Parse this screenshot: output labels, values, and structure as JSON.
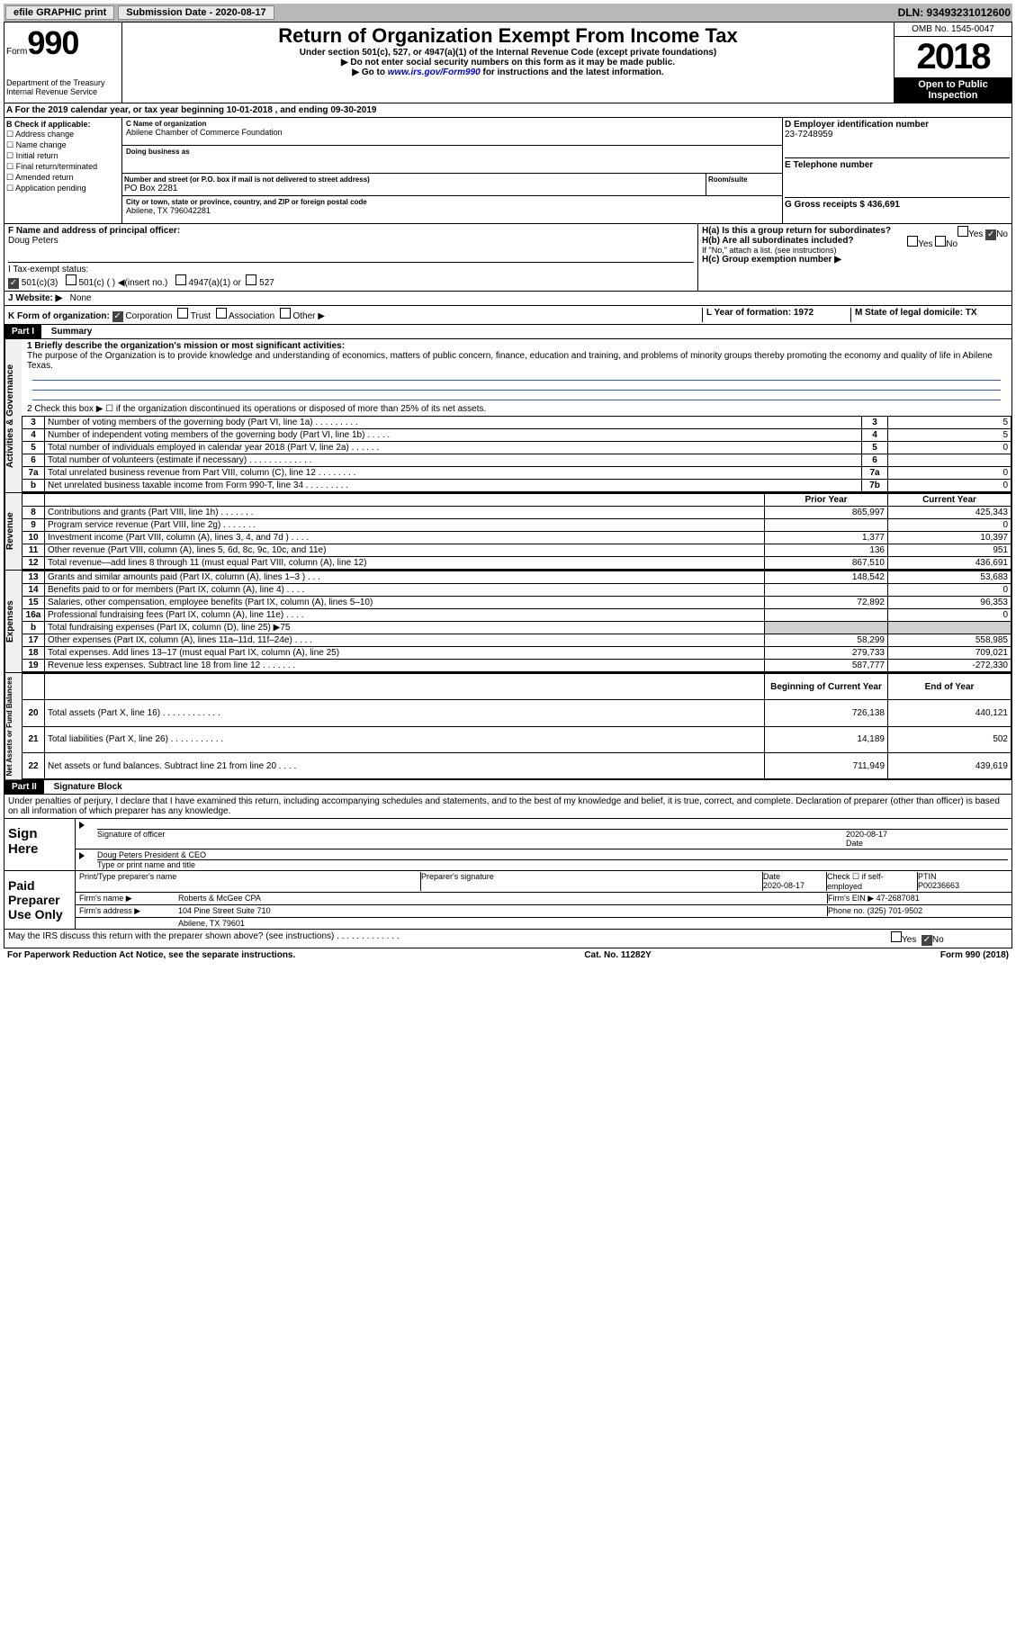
{
  "topbar": {
    "efile": "efile GRAPHIC print",
    "subdate_label": "Submission Date - 2020-08-17",
    "dln": "DLN: 93493231012600"
  },
  "header": {
    "form_word": "Form",
    "form_num": "990",
    "dept1": "Department of the Treasury",
    "dept2": "Internal Revenue Service",
    "title": "Return of Organization Exempt From Income Tax",
    "sub1": "Under section 501(c), 527, or 4947(a)(1) of the Internal Revenue Code (except private foundations)",
    "sub2": "▶ Do not enter social security numbers on this form as it may be made public.",
    "sub3_pre": "▶ Go to ",
    "sub3_link": "www.irs.gov/Form990",
    "sub3_post": " for instructions and the latest information.",
    "omb": "OMB No. 1545-0047",
    "year": "2018",
    "inspect1": "Open to Public",
    "inspect2": "Inspection"
  },
  "row_a": "A For the 2019 calendar year, or tax year beginning 10-01-2018    , and ending 09-30-2019",
  "sec_b": {
    "label": "B Check if applicable:",
    "items": [
      "Address change",
      "Name change",
      "Initial return",
      "Final return/terminated",
      "Amended return",
      "Application pending"
    ]
  },
  "sec_c": {
    "name_label": "C Name of organization",
    "name": "Abilene Chamber of Commerce Foundation",
    "dba_label": "Doing business as",
    "addr_label": "Number and street (or P.O. box if mail is not delivered to street address)",
    "room_label": "Room/suite",
    "addr": "PO Box 2281",
    "city_label": "City or town, state or province, country, and ZIP or foreign postal code",
    "city": "Abilene, TX  796042281"
  },
  "sec_de": {
    "d_label": "D Employer identification number",
    "d_val": "23-7248959",
    "e_label": "E Telephone number",
    "g_label": "G Gross receipts $ 436,691"
  },
  "sec_f": {
    "label": "F  Name and address of principal officer:",
    "name": "Doug Peters"
  },
  "sec_h": {
    "ha": "H(a)  Is this a group return for subordinates?",
    "hb": "H(b)  Are all subordinates included?",
    "hb_note": "If \"No,\" attach a list. (see instructions)",
    "hc": "H(c)  Group exemption number ▶",
    "yes": "Yes",
    "no": "No"
  },
  "row_i": {
    "label": "I   Tax-exempt status:",
    "o1": "501(c)(3)",
    "o2": "501(c) (  ) ◀(insert no.)",
    "o3": "4947(a)(1) or",
    "o4": "527"
  },
  "row_j": {
    "label": "J   Website: ▶",
    "val": "None"
  },
  "row_k": {
    "label": "K Form of organization:",
    "o1": "Corporation",
    "o2": "Trust",
    "o3": "Association",
    "o4": "Other ▶",
    "l": "L Year of formation: 1972",
    "m": "M State of legal domicile: TX"
  },
  "part1": {
    "hdr": "Part I",
    "title": "Summary"
  },
  "summary": {
    "q1_label": "1  Briefly describe the organization's mission or most significant activities:",
    "q1_text": "The purpose of the Organization is to provide knowledge and understanding of economics, matters of public concern, finance, education and training, and problems of minority groups thereby promoting the economy and quality of life in Abilene Texas.",
    "q2": "2   Check this box ▶ ☐  if the organization discontinued its operations or disposed of more than 25% of its net assets.",
    "sidetab_ag": "Activities & Governance",
    "sidetab_rev": "Revenue",
    "sidetab_exp": "Expenses",
    "sidetab_na": "Net Assets or Fund Balances",
    "rows_ag": [
      {
        "n": "3",
        "d": "Number of voting members of the governing body (Part VI, line 1a)   .   .   .   .   .   .   .   .   .",
        "b": "3",
        "v": "5"
      },
      {
        "n": "4",
        "d": "Number of independent voting members of the governing body (Part VI, line 1b)   .   .   .   .   .",
        "b": "4",
        "v": "5"
      },
      {
        "n": "5",
        "d": "Total number of individuals employed in calendar year 2018 (Part V, line 2a)   .   .   .   .   .   .",
        "b": "5",
        "v": "0"
      },
      {
        "n": "6",
        "d": "Total number of volunteers (estimate if necessary)   .   .   .   .   .   .   .   .   .   .   .   .   .",
        "b": "6",
        "v": ""
      },
      {
        "n": "7a",
        "d": "Total unrelated business revenue from Part VIII, column (C), line 12   .   .   .   .   .   .   .   .",
        "b": "7a",
        "v": "0"
      },
      {
        "n": "b",
        "d": "Net unrelated business taxable income from Form 990-T, line 34   .   .   .   .   .   .   .   .   .",
        "b": "7b",
        "v": "0"
      }
    ],
    "col_hdr": {
      "py": "Prior Year",
      "cy": "Current Year",
      "bcy": "Beginning of Current Year",
      "eoy": "End of Year"
    },
    "rows_rev": [
      {
        "n": "8",
        "d": "Contributions and grants (Part VIII, line 1h)   .   .   .   .   .   .   .",
        "py": "865,997",
        "cy": "425,343"
      },
      {
        "n": "9",
        "d": "Program service revenue (Part VIII, line 2g)   .   .   .   .   .   .   .",
        "py": "",
        "cy": "0"
      },
      {
        "n": "10",
        "d": "Investment income (Part VIII, column (A), lines 3, 4, and 7d )   .   .   .   .",
        "py": "1,377",
        "cy": "10,397"
      },
      {
        "n": "11",
        "d": "Other revenue (Part VIII, column (A), lines 5, 6d, 8c, 9c, 10c, and 11e)",
        "py": "136",
        "cy": "951"
      },
      {
        "n": "12",
        "d": "Total revenue—add lines 8 through 11 (must equal Part VIII, column (A), line 12)",
        "py": "867,510",
        "cy": "436,691"
      }
    ],
    "rows_exp": [
      {
        "n": "13",
        "d": "Grants and similar amounts paid (Part IX, column (A), lines 1–3 )   .   .   .",
        "py": "148,542",
        "cy": "53,683"
      },
      {
        "n": "14",
        "d": "Benefits paid to or for members (Part IX, column (A), line 4)   .   .   .   .",
        "py": "",
        "cy": "0"
      },
      {
        "n": "15",
        "d": "Salaries, other compensation, employee benefits (Part IX, column (A), lines 5–10)",
        "py": "72,892",
        "cy": "96,353"
      },
      {
        "n": "16a",
        "d": "Professional fundraising fees (Part IX, column (A), line 11e)   .   .   .   .",
        "py": "",
        "cy": "0"
      },
      {
        "n": "b",
        "d": "Total fundraising expenses (Part IX, column (D), line 25) ▶75",
        "py": "shade",
        "cy": "shade"
      },
      {
        "n": "17",
        "d": "Other expenses (Part IX, column (A), lines 11a–11d, 11f–24e)   .   .   .   .",
        "py": "58,299",
        "cy": "558,985"
      },
      {
        "n": "18",
        "d": "Total expenses. Add lines 13–17 (must equal Part IX, column (A), line 25)",
        "py": "279,733",
        "cy": "709,021"
      },
      {
        "n": "19",
        "d": "Revenue less expenses. Subtract line 18 from line 12   .   .   .   .   .   .   .",
        "py": "587,777",
        "cy": "-272,330"
      }
    ],
    "rows_na": [
      {
        "n": "20",
        "d": "Total assets (Part X, line 16)   .   .   .   .   .   .   .   .   .   .   .   .",
        "py": "726,138",
        "cy": "440,121"
      },
      {
        "n": "21",
        "d": "Total liabilities (Part X, line 26)   .   .   .   .   .   .   .   .   .   .   .",
        "py": "14,189",
        "cy": "502"
      },
      {
        "n": "22",
        "d": "Net assets or fund balances. Subtract line 21 from line 20   .   .   .   .",
        "py": "711,949",
        "cy": "439,619"
      }
    ]
  },
  "part2": {
    "hdr": "Part II",
    "title": "Signature Block"
  },
  "sig": {
    "decl": "Under penalties of perjury, I declare that I have examined this return, including accompanying schedules and statements, and to the best of my knowledge and belief, it is true, correct, and complete. Declaration of preparer (other than officer) is based on all information of which preparer has any knowledge.",
    "sign_here": "Sign Here",
    "sig_officer": "Signature of officer",
    "date_label": "Date",
    "date_val": "2020-08-17",
    "officer_name": "Doug Peters  President & CEO",
    "type_name": "Type or print name and title",
    "paid": "Paid Preparer Use Only",
    "pt_name_label": "Print/Type preparer's name",
    "pt_sig_label": "Preparer's signature",
    "pt_date_label": "Date",
    "pt_date": "2020-08-17",
    "pt_check": "Check ☐ if self-employed",
    "ptin_label": "PTIN",
    "ptin": "P00236663",
    "firm_name_label": "Firm's name    ▶",
    "firm_name": "Roberts & McGee CPA",
    "firm_ein_label": "Firm's EIN ▶",
    "firm_ein": "47-2687081",
    "firm_addr_label": "Firm's address ▶",
    "firm_addr1": "104 Pine Street Suite 710",
    "firm_addr2": "Abilene, TX  79601",
    "phone_label": "Phone no.",
    "phone": "(325) 701-9502",
    "irs_q": "May the IRS discuss this return with the preparer shown above? (see instructions)   .   .   .   .   .   .   .   .   .   .   .   .   ."
  },
  "footer": {
    "pra": "For Paperwork Reduction Act Notice, see the separate instructions.",
    "cat": "Cat. No. 11282Y",
    "form": "Form 990 (2018)"
  }
}
